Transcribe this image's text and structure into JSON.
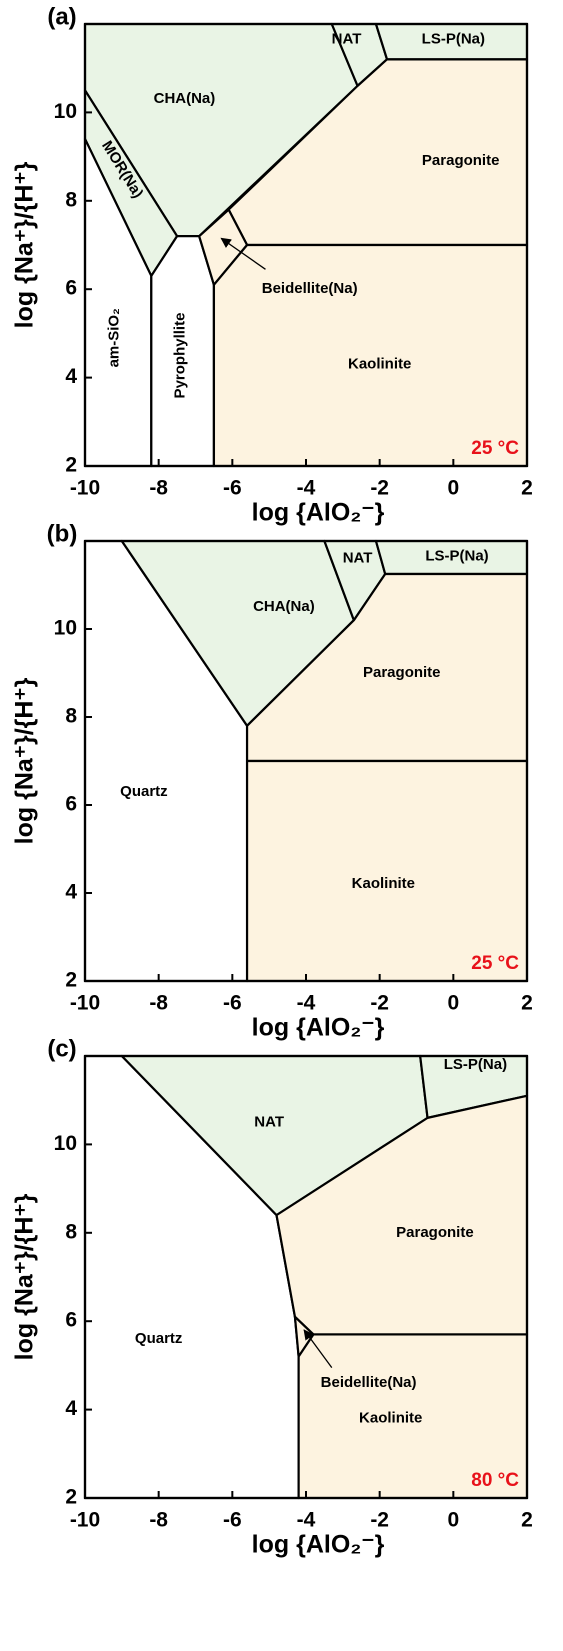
{
  "chart_data": [
    {
      "type": "phase-diagram",
      "panel_label": "(a)",
      "annotation": "25 °C",
      "xlabel": "log {AlO₂⁻}",
      "ylabel": "log {Na⁺}/{H⁺}",
      "xlim": [
        -10,
        2
      ],
      "ylim": [
        2,
        12
      ],
      "xticks": [
        -10,
        -8,
        -6,
        -4,
        -2,
        0,
        2
      ],
      "yticks": [
        2,
        4,
        6,
        8,
        10
      ],
      "regions": [
        {
          "name": "CHA(Na)",
          "color": "#e9f4e5",
          "x": [
            -10,
            -3.3,
            -2.6,
            -6.9,
            -7.5,
            -10
          ],
          "y": [
            12,
            12,
            10.6,
            7.2,
            7.2,
            10.5
          ]
        },
        {
          "name": "MOR(Na)",
          "color": "#e9f4e5",
          "x": [
            -10,
            -7.5,
            -8.2,
            -10
          ],
          "y": [
            10.5,
            7.2,
            6.3,
            9.4
          ]
        },
        {
          "name": "am-SiO₂",
          "color": "#ffffff",
          "x": [
            -10,
            -8.2,
            -8.2,
            -10
          ],
          "y": [
            9.4,
            6.3,
            2,
            2
          ]
        },
        {
          "name": "Pyrophyllite",
          "color": "#ffffff",
          "x": [
            -8.2,
            -7.5,
            -6.9,
            -6.5,
            -6.5,
            -8.2
          ],
          "y": [
            6.3,
            7.2,
            7.2,
            6.1,
            2,
            2
          ]
        },
        {
          "name": "NAT",
          "color": "#e9f4e5",
          "x": [
            -3.3,
            -2.1,
            -1.8,
            -2.6
          ],
          "y": [
            12,
            12,
            11.2,
            10.6
          ]
        },
        {
          "name": "LS-P(Na)",
          "color": "#e9f4e5",
          "x": [
            -2.1,
            2,
            2,
            -1.8
          ],
          "y": [
            12,
            12,
            11.2,
            11.2
          ]
        },
        {
          "name": "Paragonite",
          "color": "#fdf3e0",
          "x": [
            -6.1,
            -2.6,
            -1.8,
            2,
            2,
            -5.6
          ],
          "y": [
            7.8,
            10.6,
            11.2,
            11.2,
            7.0,
            7.0
          ]
        },
        {
          "name": "Beidellite(Na)",
          "color": "#fdf3e0",
          "x": [
            -6.9,
            -6.1,
            -5.6,
            -6.5
          ],
          "y": [
            7.2,
            7.8,
            7.0,
            6.1
          ]
        },
        {
          "name": "Kaolinite",
          "color": "#fdf3e0",
          "x": [
            -6.5,
            -5.6,
            2,
            2,
            -6.5
          ],
          "y": [
            6.1,
            7.0,
            7.0,
            2,
            2
          ]
        }
      ]
    },
    {
      "type": "phase-diagram",
      "panel_label": "(b)",
      "annotation": "25 °C",
      "xlabel": "log {AlO₂⁻}",
      "ylabel": "log {Na⁺}/{H⁺}",
      "xlim": [
        -10,
        2
      ],
      "ylim": [
        2,
        12
      ],
      "xticks": [
        -10,
        -8,
        -6,
        -4,
        -2,
        0,
        2
      ],
      "yticks": [
        2,
        4,
        6,
        8,
        10
      ],
      "regions": [
        {
          "name": "Quartz",
          "color": "#ffffff",
          "x": [
            -10,
            -9.0,
            -5.6,
            -5.6,
            -10
          ],
          "y": [
            12,
            12,
            7.8,
            2,
            2
          ]
        },
        {
          "name": "CHA(Na)",
          "color": "#e9f4e5",
          "x": [
            -9.0,
            -3.5,
            -2.7,
            -5.6
          ],
          "y": [
            12,
            12,
            10.2,
            7.8
          ]
        },
        {
          "name": "NAT",
          "color": "#e9f4e5",
          "x": [
            -3.5,
            -2.1,
            -1.85,
            -2.7
          ],
          "y": [
            12,
            12,
            11.25,
            10.2
          ]
        },
        {
          "name": "LS-P(Na)",
          "color": "#e9f4e5",
          "x": [
            -2.1,
            2,
            2,
            -1.85
          ],
          "y": [
            12,
            12,
            11.25,
            11.25
          ]
        },
        {
          "name": "Paragonite",
          "color": "#fdf3e0",
          "x": [
            -5.6,
            -2.7,
            -1.85,
            2,
            2,
            -5.6
          ],
          "y": [
            7.8,
            10.2,
            11.25,
            11.25,
            7.0,
            7.0
          ]
        },
        {
          "name": "Kaolinite",
          "color": "#fdf3e0",
          "x": [
            -5.6,
            2,
            2,
            -5.6
          ],
          "y": [
            7.0,
            7.0,
            2,
            2
          ]
        }
      ]
    },
    {
      "type": "phase-diagram",
      "panel_label": "(c)",
      "annotation": "80 °C",
      "xlabel": "log {AlO₂⁻}",
      "ylabel": "log {Na⁺}/{H⁺}",
      "xlim": [
        -10,
        2
      ],
      "ylim": [
        2,
        12
      ],
      "xticks": [
        -10,
        -8,
        -6,
        -4,
        -2,
        0,
        2
      ],
      "yticks": [
        2,
        4,
        6,
        8,
        10
      ],
      "regions": [
        {
          "name": "Quartz",
          "color": "#ffffff",
          "x": [
            -10,
            -9.0,
            -4.8,
            -4.3,
            -4.2,
            -4.2,
            -10
          ],
          "y": [
            12,
            12,
            8.4,
            6.1,
            5.2,
            2,
            2
          ]
        },
        {
          "name": "NAT",
          "color": "#e9f4e5",
          "x": [
            -9.0,
            -0.9,
            -0.7,
            -4.8
          ],
          "y": [
            12,
            12,
            10.6,
            8.4
          ]
        },
        {
          "name": "LS-P(Na)",
          "color": "#e9f4e5",
          "x": [
            -0.9,
            2,
            2,
            -0.7
          ],
          "y": [
            12,
            12,
            11.1,
            10.6
          ]
        },
        {
          "name": "Paragonite",
          "color": "#fdf3e0",
          "x": [
            -4.8,
            -0.7,
            2,
            2,
            -3.8,
            -4.3
          ],
          "y": [
            8.4,
            10.6,
            11.1,
            5.7,
            5.7,
            6.1
          ]
        },
        {
          "name": "Beidellite(Na)",
          "color": "#fdf3e0",
          "x": [
            -4.3,
            -3.8,
            -4.2
          ],
          "y": [
            6.1,
            5.7,
            5.2
          ]
        },
        {
          "name": "Kaolinite",
          "color": "#fdf3e0",
          "x": [
            -4.2,
            -3.8,
            2,
            2,
            -4.2
          ],
          "y": [
            5.2,
            5.7,
            5.7,
            2,
            2
          ]
        }
      ]
    }
  ]
}
